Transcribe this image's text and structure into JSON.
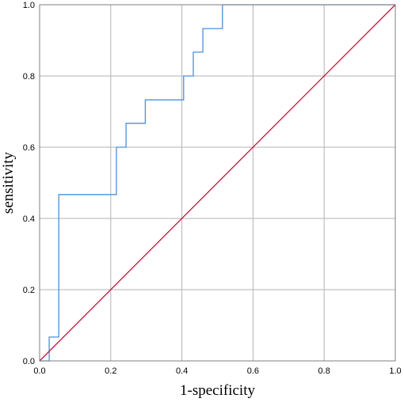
{
  "chart_data": {
    "type": "line",
    "title": "",
    "xlabel": "1-specificity",
    "ylabel": "sensitivity",
    "xlim": [
      0,
      1
    ],
    "ylim": [
      0,
      1
    ],
    "x_ticks": [
      "0.0",
      "0.2",
      "0.4",
      "0.6",
      "0.8",
      "1.0"
    ],
    "y_ticks": [
      "0.0",
      "0.2",
      "0.4",
      "0.6",
      "0.8",
      "1.0"
    ],
    "grid": true,
    "legend": "none",
    "series": [
      {
        "color": "#4a90d9",
        "style": "step",
        "points": [
          [
            0.0,
            0.0
          ],
          [
            0.027,
            0.0
          ],
          [
            0.027,
            0.067
          ],
          [
            0.054,
            0.067
          ],
          [
            0.054,
            0.467
          ],
          [
            0.216,
            0.467
          ],
          [
            0.216,
            0.6
          ],
          [
            0.243,
            0.6
          ],
          [
            0.243,
            0.667
          ],
          [
            0.297,
            0.667
          ],
          [
            0.297,
            0.733
          ],
          [
            0.405,
            0.733
          ],
          [
            0.405,
            0.8
          ],
          [
            0.432,
            0.8
          ],
          [
            0.432,
            0.867
          ],
          [
            0.459,
            0.867
          ],
          [
            0.459,
            0.933
          ],
          [
            0.514,
            0.933
          ],
          [
            0.514,
            1.0
          ],
          [
            1.0,
            1.0
          ]
        ]
      },
      {
        "color": "#d0103a",
        "style": "line",
        "points": [
          [
            0.0,
            0.0
          ],
          [
            1.0,
            1.0
          ]
        ]
      }
    ]
  }
}
